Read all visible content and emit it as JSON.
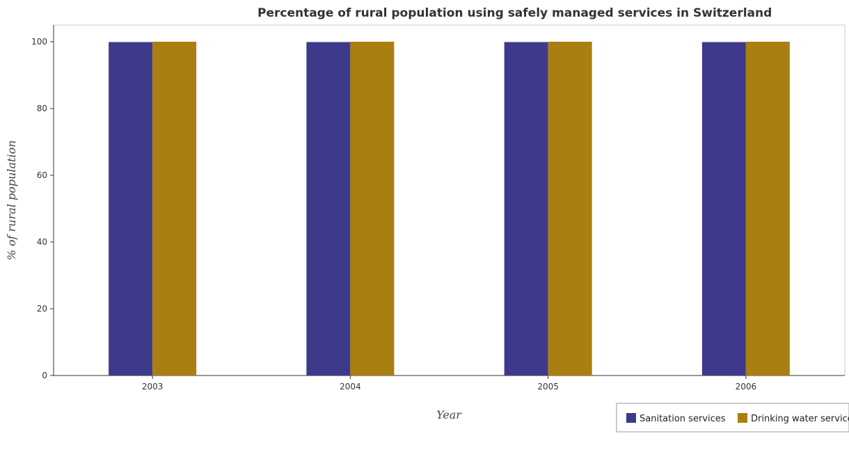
{
  "chart_data": {
    "type": "bar",
    "title": "Percentage of rural population using safely managed services in Switzerland",
    "xlabel": "Year",
    "ylabel": "% of rural population",
    "categories": [
      "2003",
      "2004",
      "2005",
      "2006"
    ],
    "series": [
      {
        "name": "Sanitation services",
        "values": [
          99.9,
          99.9,
          99.9,
          99.9
        ],
        "color": "#3d3a8c"
      },
      {
        "name": "Drinking water services",
        "values": [
          100,
          100,
          100,
          100
        ],
        "color": "#a87f10"
      }
    ],
    "ylim": [
      0,
      105
    ],
    "yticks": [
      0,
      20,
      40,
      60,
      80,
      100
    ],
    "grid": false,
    "legend_position": "bottom-right"
  }
}
